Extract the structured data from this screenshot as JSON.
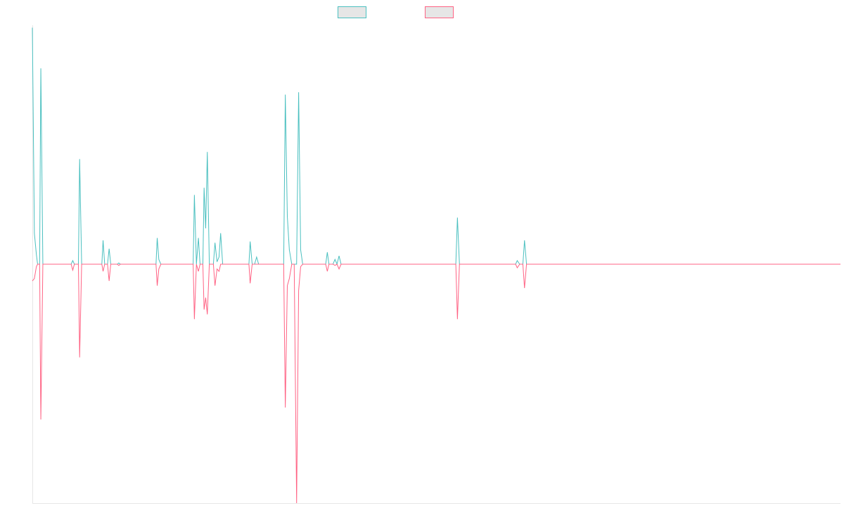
{
  "chart_data": {
    "type": "line",
    "title": "",
    "xlabel": "",
    "ylabel": "",
    "ylim": [
      -100,
      100
    ],
    "grid": false,
    "legend": {
      "placement": "top-center",
      "entries": [
        {
          "label": "",
          "color": "#4bc0c0",
          "fill": "#e6e6e6"
        },
        {
          "label": "",
          "color": "#ff6384",
          "fill": "#e6e6e6"
        }
      ]
    },
    "x": [
      0,
      0.3,
      0.7,
      1,
      1.3,
      1.7,
      2,
      2.3,
      2.7,
      3,
      3.3,
      3.7,
      4,
      4.3,
      4.7,
      5,
      5.3,
      5.7,
      6,
      6.3,
      6.7,
      7,
      7.3,
      7.7,
      8,
      8.3,
      8.7,
      9,
      9.3,
      9.7,
      10,
      10.3,
      10.7,
      11,
      11.3,
      11.7,
      12,
      12.3,
      12.7,
      13,
      13.3,
      13.7,
      14,
      14.3,
      14.7,
      15,
      15.3,
      15.7,
      16,
      16.3,
      16.7,
      17,
      17.3,
      17.7,
      18,
      18.3,
      18.7,
      19,
      19.3,
      19.7,
      20,
      20.3,
      20.7,
      21,
      21.3,
      21.7,
      22,
      22.3,
      22.7,
      23,
      23.3,
      23.7,
      24,
      24.3,
      24.7,
      25,
      25.3,
      25.7,
      26,
      26.3,
      26.7,
      27,
      27.3,
      27.7,
      28,
      28.3,
      28.7,
      29,
      29.3,
      29.7,
      30,
      30.3,
      30.7,
      31,
      31.3,
      31.7,
      32,
      32.3,
      32.7,
      33,
      33.3,
      33.7,
      34,
      34.3,
      34.7,
      35,
      35.3,
      35.7,
      36,
      36.3,
      36.7,
      37,
      37.3,
      37.7,
      38,
      38.3,
      38.7,
      39,
      39.3,
      39.7,
      40,
      40.3,
      40.7,
      41,
      41.3,
      41.7,
      42,
      42.3,
      42.7,
      43,
      43.3,
      43.7,
      44,
      44.3,
      44.7,
      45,
      45.3,
      45.7,
      46,
      46.3,
      46.7,
      47,
      47.3,
      47.7,
      48,
      48.3,
      48.7,
      49,
      49.3,
      49.7,
      50,
      50.3,
      50.7,
      51,
      51.3,
      51.7,
      52,
      52.3,
      52.7,
      53,
      53.3,
      53.7,
      54,
      54.3,
      54.7,
      55,
      55.3,
      55.7,
      56,
      56.3,
      56.7,
      57,
      57.3,
      57.7,
      58,
      58.3,
      58.7,
      59,
      59.3,
      59.7,
      60,
      60.3,
      60.7,
      61,
      61.3,
      61.7,
      62,
      62.3,
      62.7,
      63,
      63.3,
      63.7,
      64,
      64.3,
      64.7,
      65,
      65.3,
      65.7,
      66,
      66.3,
      66.7,
      67,
      67.3,
      67.7,
      68,
      68.3,
      68.7,
      69,
      69.3,
      69.7,
      70,
      70.3,
      70.7,
      71,
      71.3,
      71.7,
      72,
      72.3,
      72.7,
      73,
      73.3,
      73.7,
      74,
      74.3,
      74.7,
      75,
      75.3,
      75.7,
      76,
      76.3,
      76.7,
      77,
      77.3,
      77.7,
      78,
      78.3,
      78.7,
      79,
      79.3,
      79.7,
      80,
      80.3,
      80.7,
      81,
      81.3,
      81.7,
      82,
      82.3,
      82.7,
      83,
      83.3,
      83.7,
      84,
      84.3,
      84.7,
      85,
      85.3,
      85.7,
      86,
      86.3,
      86.7,
      87,
      87.3,
      87.7,
      88,
      88.3,
      88.7,
      89,
      89.3,
      89.7,
      90,
      90.3,
      90.7,
      91,
      91.3,
      91.7,
      92,
      92.3,
      92.7,
      93,
      93.3,
      93.7,
      94,
      94.3,
      94.7,
      95,
      95.3,
      95.7,
      96,
      96.3,
      96.7,
      97,
      97.3,
      97.7,
      98,
      98.3,
      98.7,
      99,
      99.3,
      99.7,
      100
    ],
    "series": [
      {
        "color": "#4bc0c0",
        "points": [
          [
            0,
            99
          ],
          [
            0.25,
            13
          ],
          [
            0.5,
            4
          ],
          [
            0.65,
            0
          ],
          [
            0.9,
            0
          ],
          [
            1.05,
            82
          ],
          [
            1.3,
            0
          ],
          [
            1.6,
            0
          ],
          [
            4.8,
            0
          ],
          [
            5,
            1.5
          ],
          [
            5.2,
            0
          ],
          [
            5.5,
            0
          ],
          [
            5.7,
            0
          ],
          [
            5.85,
            44
          ],
          [
            6.1,
            0
          ],
          [
            6.3,
            0
          ],
          [
            8.6,
            0
          ],
          [
            8.75,
            10
          ],
          [
            8.95,
            0
          ],
          [
            9.3,
            0
          ],
          [
            9.5,
            6.5
          ],
          [
            9.7,
            0
          ],
          [
            10.5,
            0
          ],
          [
            10.7,
            0.5
          ],
          [
            10.9,
            0
          ],
          [
            11.1,
            0
          ],
          [
            15.3,
            0
          ],
          [
            15.45,
            11
          ],
          [
            15.65,
            2
          ],
          [
            15.9,
            0
          ],
          [
            19.9,
            0
          ],
          [
            20.05,
            29
          ],
          [
            20.3,
            0
          ],
          [
            20.55,
            11
          ],
          [
            20.75,
            0
          ],
          [
            21.1,
            0
          ],
          [
            21.25,
            32
          ],
          [
            21.45,
            15
          ],
          [
            21.65,
            47
          ],
          [
            21.9,
            0
          ],
          [
            22.2,
            0
          ],
          [
            22.4,
            0
          ],
          [
            22.6,
            9
          ],
          [
            22.85,
            1
          ],
          [
            23.1,
            3
          ],
          [
            23.3,
            13
          ],
          [
            23.55,
            0
          ],
          [
            26.8,
            0
          ],
          [
            26.95,
            9.5
          ],
          [
            27.2,
            0
          ],
          [
            27.5,
            0
          ],
          [
            27.75,
            3
          ],
          [
            28,
            0
          ],
          [
            28.3,
            0
          ],
          [
            28.6,
            0
          ],
          [
            31.1,
            0
          ],
          [
            31.3,
            71
          ],
          [
            31.55,
            20
          ],
          [
            31.8,
            6
          ],
          [
            32.1,
            0
          ],
          [
            32.4,
            0
          ],
          [
            32.7,
            0
          ],
          [
            32.95,
            72
          ],
          [
            33.2,
            6
          ],
          [
            33.45,
            0
          ],
          [
            36.3,
            0
          ],
          [
            36.5,
            5
          ],
          [
            36.7,
            0
          ],
          [
            37.2,
            0
          ],
          [
            37.45,
            2
          ],
          [
            37.7,
            0
          ],
          [
            37.95,
            3.5
          ],
          [
            38.2,
            0
          ],
          [
            52.4,
            0
          ],
          [
            52.6,
            19.5
          ],
          [
            52.85,
            0
          ],
          [
            59.8,
            0
          ],
          [
            60,
            1.5
          ],
          [
            60.3,
            0
          ],
          [
            60.7,
            0
          ],
          [
            60.9,
            10
          ],
          [
            61.15,
            0
          ],
          [
            100,
            0
          ]
        ]
      },
      {
        "color": "#ff6384",
        "points": [
          [
            0,
            -7
          ],
          [
            0.25,
            -6
          ],
          [
            0.5,
            -1
          ],
          [
            0.65,
            0
          ],
          [
            0.9,
            0
          ],
          [
            1.05,
            -65
          ],
          [
            1.3,
            0
          ],
          [
            1.6,
            0
          ],
          [
            4.8,
            0
          ],
          [
            5,
            -2.5
          ],
          [
            5.2,
            0
          ],
          [
            5.5,
            0
          ],
          [
            5.7,
            0
          ],
          [
            5.85,
            -39
          ],
          [
            6.1,
            0
          ],
          [
            6.3,
            0
          ],
          [
            8.6,
            0
          ],
          [
            8.75,
            -3
          ],
          [
            8.95,
            0
          ],
          [
            9.3,
            0
          ],
          [
            9.5,
            -7
          ],
          [
            9.7,
            0
          ],
          [
            10.5,
            0
          ],
          [
            10.7,
            -0.5
          ],
          [
            10.9,
            0
          ],
          [
            11.1,
            0
          ],
          [
            15.3,
            0
          ],
          [
            15.45,
            -9
          ],
          [
            15.65,
            -2
          ],
          [
            15.9,
            0
          ],
          [
            19.9,
            0
          ],
          [
            20.05,
            -23
          ],
          [
            20.3,
            0
          ],
          [
            20.55,
            -3
          ],
          [
            20.75,
            0
          ],
          [
            21.1,
            0
          ],
          [
            21.25,
            -19
          ],
          [
            21.45,
            -14
          ],
          [
            21.65,
            -21
          ],
          [
            21.9,
            0
          ],
          [
            22.2,
            0
          ],
          [
            22.4,
            0
          ],
          [
            22.6,
            -9
          ],
          [
            22.85,
            -2
          ],
          [
            23.1,
            -3
          ],
          [
            23.3,
            0
          ],
          [
            23.55,
            0
          ],
          [
            26.8,
            0
          ],
          [
            26.95,
            -8
          ],
          [
            27.2,
            0
          ],
          [
            27.5,
            0
          ],
          [
            27.75,
            0
          ],
          [
            28,
            0
          ],
          [
            28.3,
            0
          ],
          [
            28.6,
            0
          ],
          [
            31.1,
            0
          ],
          [
            31.3,
            -60
          ],
          [
            31.55,
            -9
          ],
          [
            31.8,
            -6
          ],
          [
            32.1,
            0
          ],
          [
            32.4,
            0
          ],
          [
            32.7,
            -100
          ],
          [
            32.95,
            -11
          ],
          [
            33.2,
            -1
          ],
          [
            33.45,
            0
          ],
          [
            36.3,
            0
          ],
          [
            36.5,
            -3
          ],
          [
            36.7,
            0
          ],
          [
            37.2,
            0
          ],
          [
            37.45,
            -0.5
          ],
          [
            37.7,
            0
          ],
          [
            37.95,
            -2
          ],
          [
            38.2,
            0
          ],
          [
            52.4,
            0
          ],
          [
            52.6,
            -23
          ],
          [
            52.85,
            0
          ],
          [
            59.8,
            0
          ],
          [
            60,
            -1.5
          ],
          [
            60.3,
            0
          ],
          [
            60.7,
            0
          ],
          [
            60.9,
            -10
          ],
          [
            61.15,
            0
          ],
          [
            100,
            0
          ]
        ]
      }
    ]
  }
}
